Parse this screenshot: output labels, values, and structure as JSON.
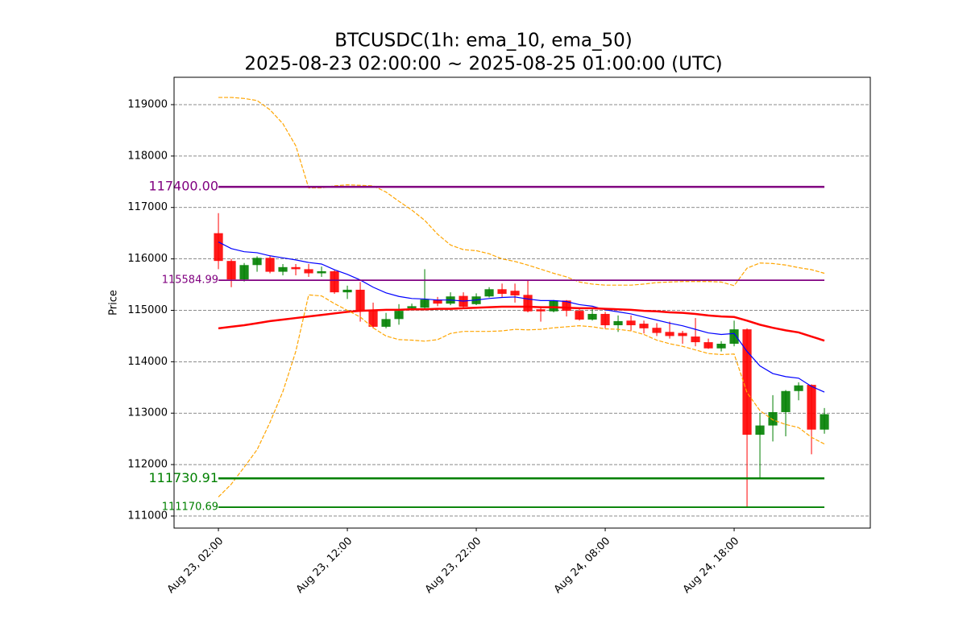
{
  "chart_data": {
    "type": "candlestick",
    "title": "BTCUSDC(1h: ema_10, ema_50)",
    "subtitle": "2025-08-23 02:00:00 ~ 2025-08-25 01:00:00 (UTC)",
    "y_label": "Price",
    "up_color": "green",
    "down_color": "red",
    "grid": true,
    "xlim": [
      -3.44,
      50.56
    ],
    "xticks": [
      {
        "value": 0,
        "label": "Aug 23, 02:00"
      },
      {
        "value": 10,
        "label": "Aug 23, 12:00"
      },
      {
        "value": 20,
        "label": "Aug 23, 22:00"
      },
      {
        "value": 30,
        "label": "Aug 24, 08:00"
      },
      {
        "value": 40,
        "label": "Aug 24, 18:00"
      }
    ],
    "ylim": [
      110765,
      119532
    ],
    "yticks": [
      111000,
      112000,
      113000,
      114000,
      115000,
      116000,
      117000,
      118000,
      119000
    ],
    "x": [
      0,
      1,
      2,
      3,
      4,
      5,
      6,
      7,
      8,
      9,
      10,
      11,
      12,
      13,
      14,
      15,
      16,
      17,
      18,
      19,
      20,
      21,
      22,
      23,
      24,
      25,
      26,
      27,
      28,
      29,
      30,
      31,
      32,
      33,
      34,
      35,
      36,
      37,
      38,
      39,
      40,
      41,
      42,
      43,
      44,
      45,
      46,
      47
    ],
    "open": [
      116500,
      115960,
      115600,
      115880,
      116020,
      115750,
      115840,
      115800,
      115720,
      115760,
      115350,
      115400,
      115000,
      114680,
      114830,
      115040,
      115050,
      115210,
      115130,
      115280,
      115120,
      115270,
      115410,
      115380,
      115300,
      115020,
      114980,
      115190,
      114990,
      114820,
      114930,
      114710,
      114800,
      114740,
      114660,
      114580,
      114560,
      114490,
      114380,
      114260,
      114350,
      114630,
      112580,
      112760,
      113020,
      113430,
      113550,
      112680
    ],
    "high": [
      116890,
      116000,
      115920,
      116050,
      116050,
      115900,
      115900,
      115900,
      115850,
      115780,
      115480,
      115550,
      115150,
      114950,
      115120,
      115130,
      115800,
      115260,
      115350,
      115350,
      115330,
      115450,
      115520,
      115520,
      115590,
      115080,
      115200,
      115200,
      115050,
      115050,
      114970,
      114900,
      114900,
      114800,
      114750,
      114780,
      114600,
      114850,
      114450,
      114400,
      114800,
      114650,
      113000,
      113350,
      113450,
      113600,
      113560,
      113100
    ],
    "low": [
      115800,
      115450,
      115560,
      115750,
      115720,
      115680,
      115680,
      115650,
      115650,
      115320,
      115220,
      114780,
      114650,
      114650,
      114720,
      115000,
      115030,
      115080,
      115100,
      115030,
      115100,
      115250,
      115250,
      115150,
      114960,
      114780,
      114960,
      114880,
      114800,
      114800,
      114650,
      114580,
      114600,
      114550,
      114500,
      114450,
      114350,
      114300,
      114250,
      114200,
      114300,
      111170,
      111730,
      112450,
      112550,
      113250,
      112200,
      112600
    ],
    "close": [
      115960,
      115600,
      115880,
      116020,
      115750,
      115840,
      115800,
      115720,
      115760,
      115350,
      115400,
      115000,
      114680,
      114830,
      114990,
      115080,
      115210,
      115130,
      115270,
      115070,
      115270,
      115410,
      115320,
      115290,
      114980,
      114980,
      115190,
      114990,
      114820,
      114930,
      114710,
      114790,
      114710,
      114650,
      114560,
      114500,
      114500,
      114380,
      114260,
      114350,
      114630,
      112580,
      112760,
      113020,
      113430,
      113540,
      112680,
      112980
    ],
    "lines": [
      {
        "color": "blue",
        "width": 1.2,
        "dash": false,
        "values": [
          116330,
          116200,
          116140,
          116120,
          116060,
          116020,
          115980,
          115930,
          115900,
          115790,
          115700,
          115590,
          115450,
          115340,
          115270,
          115230,
          115220,
          115200,
          115200,
          115180,
          115200,
          115230,
          115250,
          115260,
          115220,
          115190,
          115190,
          115170,
          115110,
          115080,
          115010,
          114970,
          114930,
          114870,
          114810,
          114750,
          114700,
          114630,
          114560,
          114530,
          114550,
          114200,
          113920,
          113770,
          113710,
          113680,
          113520,
          113410
        ]
      },
      {
        "color": "red",
        "width": 2.5,
        "dash": false,
        "values": [
          114650,
          114680,
          114710,
          114750,
          114790,
          114820,
          114850,
          114880,
          114910,
          114940,
          114970,
          114990,
          115000,
          115010,
          115010,
          115020,
          115020,
          115030,
          115030,
          115040,
          115050,
          115060,
          115070,
          115070,
          115070,
          115060,
          115060,
          115050,
          115040,
          115040,
          115030,
          115020,
          115010,
          114990,
          114980,
          114960,
          114950,
          114930,
          114900,
          114880,
          114870,
          114800,
          114720,
          114660,
          114610,
          114570,
          114490,
          114410
        ]
      },
      {
        "color": "orange",
        "width": 1.2,
        "dash": true,
        "values": [
          119140,
          119140,
          119120,
          119080,
          118900,
          118630,
          118200,
          117380,
          117380,
          117420,
          117440,
          117430,
          117420,
          117300,
          117120,
          116950,
          116750,
          116480,
          116270,
          116180,
          116160,
          116100,
          116000,
          115950,
          115880,
          115800,
          115720,
          115650,
          115550,
          115510,
          115490,
          115490,
          115490,
          115510,
          115540,
          115550,
          115560,
          115560,
          115560,
          115550,
          115480,
          115820,
          115920,
          115910,
          115880,
          115830,
          115790,
          115720
        ]
      },
      {
        "color": "orange",
        "width": 1.2,
        "dash": true,
        "values": [
          111370,
          111620,
          111950,
          112290,
          112820,
          113420,
          114200,
          115300,
          115280,
          115130,
          115000,
          114870,
          114660,
          114500,
          114430,
          114420,
          114400,
          114430,
          114550,
          114590,
          114590,
          114590,
          114600,
          114630,
          114620,
          114630,
          114660,
          114680,
          114700,
          114680,
          114640,
          114630,
          114600,
          114530,
          114420,
          114350,
          114300,
          114230,
          114160,
          114140,
          114150,
          113400,
          113050,
          112870,
          112780,
          112720,
          112530,
          112400
        ]
      }
    ],
    "levels": [
      {
        "value": 117400,
        "label": "117400.00",
        "color": "purple",
        "width": 2.5,
        "font": 16
      },
      {
        "value": 115584.99,
        "label": "115584.99",
        "color": "purple",
        "width": 1.8,
        "font": 13
      },
      {
        "value": 111730.91,
        "label": "111730.91",
        "color": "green",
        "width": 2.5,
        "font": 16
      },
      {
        "value": 111170.69,
        "label": "111170.69",
        "color": "green",
        "width": 1.8,
        "font": 13
      }
    ]
  }
}
